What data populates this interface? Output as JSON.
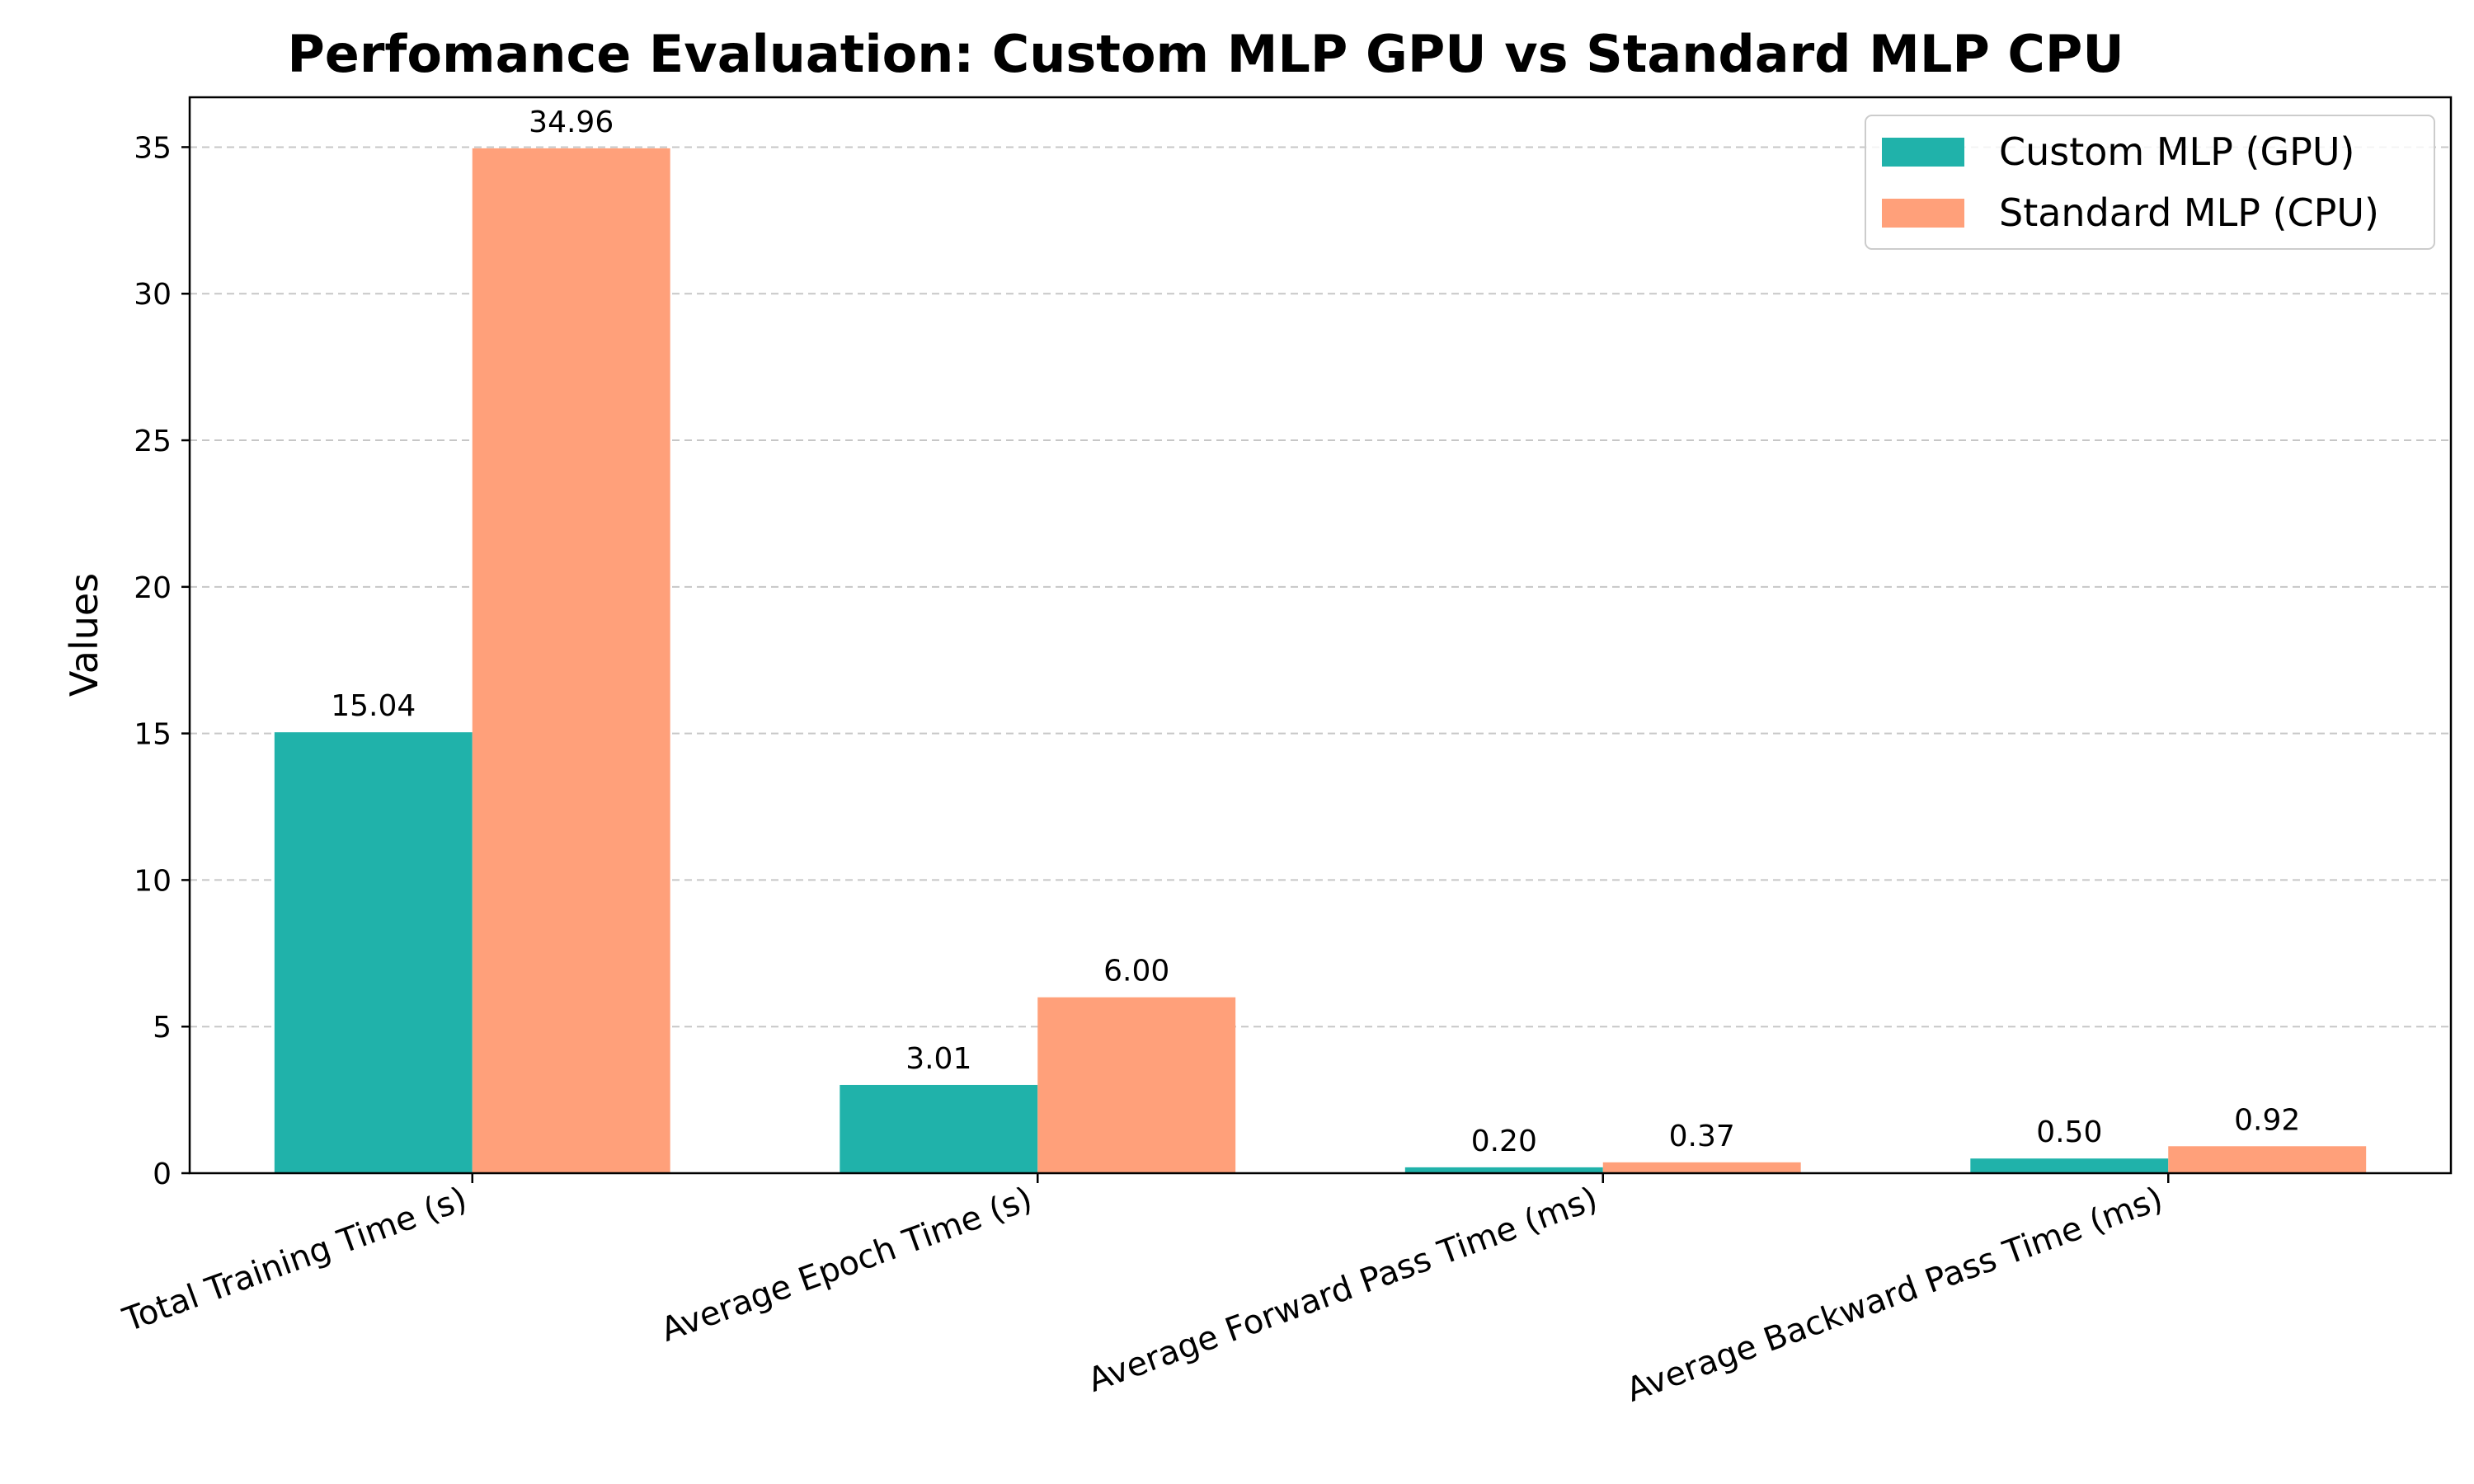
{
  "chart_data": {
    "type": "bar",
    "title": "Perfomance Evaluation: Custom MLP GPU vs Standard MLP CPU",
    "xlabel": "",
    "ylabel": "Values",
    "categories": [
      "Total Training Time (s)",
      "Average Epoch Time (s)",
      "Average Forward Pass Time (ms)",
      "Average Backward Pass Time (ms)"
    ],
    "series": [
      {
        "name": "Custom MLP (GPU)",
        "color": "#20b2aa",
        "values": [
          15.04,
          3.01,
          0.2,
          0.5
        ],
        "labels": [
          "15.04",
          "3.01",
          "0.20",
          "0.50"
        ]
      },
      {
        "name": "Standard MLP (CPU)",
        "color": "#ffa07a",
        "values": [
          34.96,
          6.0,
          0.37,
          0.92
        ],
        "labels": [
          "34.96",
          "6.00",
          "0.37",
          "0.92"
        ]
      }
    ],
    "ylim": [
      0,
      36.7
    ],
    "yticks": [
      0,
      5,
      10,
      15,
      20,
      25,
      30,
      35
    ],
    "grid": "y-dashed",
    "legend_position": "top-right"
  }
}
